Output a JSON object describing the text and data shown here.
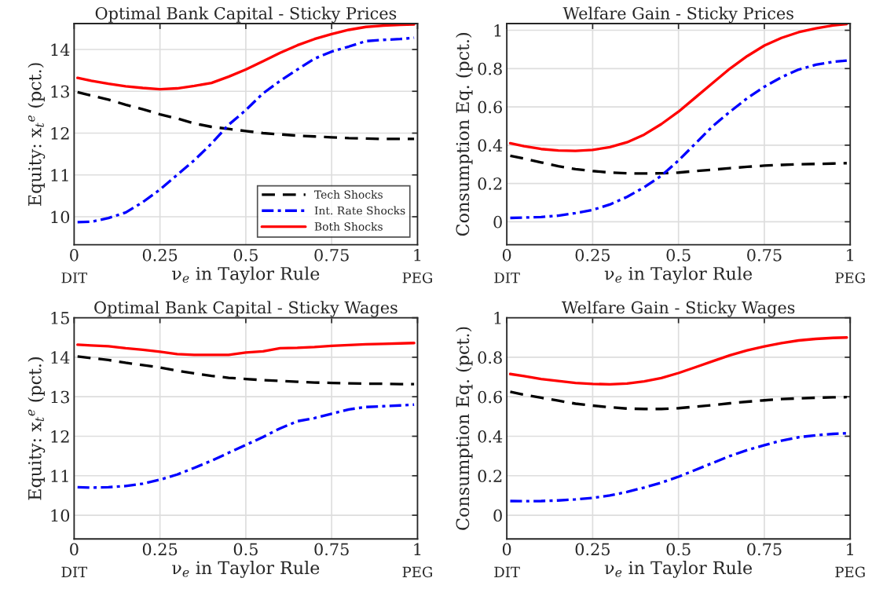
{
  "chart_data": [
    {
      "type": "line",
      "title": "Optimal Bank Capital - Sticky Prices",
      "xlabel": "ν$_{e}$ in Taylor Rule",
      "ylabel": "Equity: x$_{t}$$^{e}$ (pct.)",
      "annotations": [
        "DIT",
        "PEG"
      ],
      "x": [
        0.01,
        0.05,
        0.1,
        0.15,
        0.2,
        0.25,
        0.3,
        0.35,
        0.4,
        0.45,
        0.5,
        0.55,
        0.6,
        0.65,
        0.7,
        0.75,
        0.8,
        0.85,
        0.9,
        0.95,
        0.99
      ],
      "series": [
        {
          "name": "Tech Shocks",
          "color": "#000000",
          "line_style": "dashed",
          "values": [
            12.98,
            12.9,
            12.8,
            12.68,
            12.57,
            12.45,
            12.35,
            12.23,
            12.15,
            12.1,
            12.05,
            12.0,
            11.97,
            11.94,
            11.92,
            11.9,
            11.88,
            11.87,
            11.86,
            11.86,
            11.86
          ]
        },
        {
          "name": "Int. Rate Shocks",
          "color": "#0000ff",
          "line_style": "dashdot",
          "values": [
            9.87,
            9.88,
            9.97,
            10.1,
            10.35,
            10.65,
            11.0,
            11.35,
            11.75,
            12.2,
            12.55,
            12.95,
            13.25,
            13.52,
            13.78,
            13.95,
            14.07,
            14.2,
            14.23,
            14.25,
            14.28
          ]
        },
        {
          "name": "Both Shocks",
          "color": "#ff0000",
          "line_style": "solid",
          "values": [
            13.32,
            13.25,
            13.18,
            13.12,
            13.08,
            13.05,
            13.07,
            13.13,
            13.2,
            13.35,
            13.52,
            13.72,
            13.92,
            14.1,
            14.25,
            14.37,
            14.47,
            14.54,
            14.57,
            14.59,
            14.6
          ]
        }
      ],
      "xlim": [
        0,
        1
      ],
      "xticks": [
        0,
        0.25,
        0.5,
        0.75,
        1
      ],
      "ylim": [
        9.33,
        14.62
      ],
      "yticks": [
        10,
        11,
        12,
        13,
        14
      ],
      "grid": true,
      "legend": "bottom right"
    },
    {
      "type": "line",
      "title": "Welfare Gain - Sticky Prices",
      "xlabel": "ν$_{e}$ in Taylor Rule",
      "ylabel": "Consumption Eq. (pct.)",
      "annotations": [
        "DIT",
        "PEG"
      ],
      "x": [
        0.01,
        0.05,
        0.1,
        0.15,
        0.2,
        0.25,
        0.3,
        0.35,
        0.4,
        0.45,
        0.5,
        0.55,
        0.6,
        0.65,
        0.7,
        0.75,
        0.8,
        0.85,
        0.9,
        0.95,
        0.99
      ],
      "series": [
        {
          "color": "#000000",
          "line_style": "dashed",
          "values": [
            0.345,
            0.33,
            0.31,
            0.29,
            0.275,
            0.265,
            0.257,
            0.253,
            0.252,
            0.253,
            0.257,
            0.265,
            0.272,
            0.28,
            0.287,
            0.293,
            0.297,
            0.3,
            0.302,
            0.304,
            0.306
          ]
        },
        {
          "color": "#0000ff",
          "line_style": "dashdot",
          "values": [
            0.02,
            0.022,
            0.025,
            0.032,
            0.045,
            0.062,
            0.09,
            0.13,
            0.18,
            0.24,
            0.32,
            0.41,
            0.5,
            0.575,
            0.645,
            0.705,
            0.755,
            0.795,
            0.82,
            0.835,
            0.842
          ]
        },
        {
          "color": "#ff0000",
          "line_style": "solid",
          "values": [
            0.41,
            0.395,
            0.38,
            0.372,
            0.37,
            0.375,
            0.39,
            0.415,
            0.455,
            0.51,
            0.575,
            0.65,
            0.725,
            0.8,
            0.865,
            0.92,
            0.96,
            0.99,
            1.01,
            1.025,
            1.033
          ]
        }
      ],
      "xlim": [
        0,
        1
      ],
      "xticks": [
        0,
        0.25,
        0.5,
        0.75,
        1
      ],
      "ylim": [
        -0.12,
        1.035
      ],
      "yticks": [
        0,
        0.2,
        0.4,
        0.6,
        0.8,
        1
      ],
      "grid": true
    },
    {
      "type": "line",
      "title": "Optimal Bank Capital - Sticky Wages",
      "xlabel": "ν$_{e}$ in Taylor Rule",
      "ylabel": "Equity: x$_{t}$$^{e}$ (pct.)",
      "annotations": [
        "DIT",
        "PEG"
      ],
      "x": [
        0.01,
        0.05,
        0.1,
        0.15,
        0.2,
        0.25,
        0.3,
        0.35,
        0.4,
        0.45,
        0.5,
        0.55,
        0.6,
        0.65,
        0.7,
        0.75,
        0.8,
        0.85,
        0.9,
        0.95,
        0.99
      ],
      "series": [
        {
          "color": "#000000",
          "line_style": "dashed",
          "values": [
            14.02,
            13.98,
            13.93,
            13.86,
            13.8,
            13.74,
            13.66,
            13.59,
            13.53,
            13.48,
            13.45,
            13.42,
            13.4,
            13.38,
            13.36,
            13.35,
            13.34,
            13.33,
            13.33,
            13.32,
            13.32
          ]
        },
        {
          "color": "#0000ff",
          "line_style": "dashdot",
          "values": [
            10.71,
            10.7,
            10.71,
            10.74,
            10.8,
            10.9,
            11.03,
            11.2,
            11.38,
            11.58,
            11.78,
            11.98,
            12.2,
            12.38,
            12.46,
            12.57,
            12.68,
            12.74,
            12.76,
            12.78,
            12.8
          ]
        },
        {
          "color": "#ff0000",
          "line_style": "solid",
          "values": [
            14.32,
            14.3,
            14.28,
            14.23,
            14.19,
            14.14,
            14.08,
            14.06,
            14.06,
            14.06,
            14.12,
            14.15,
            14.23,
            14.24,
            14.26,
            14.29,
            14.31,
            14.33,
            14.34,
            14.35,
            14.36
          ]
        }
      ],
      "xlim": [
        0,
        1
      ],
      "xticks": [
        0,
        0.25,
        0.5,
        0.75,
        1
      ],
      "ylim": [
        9.4,
        15
      ],
      "yticks": [
        10,
        11,
        12,
        13,
        14,
        15
      ],
      "grid": true
    },
    {
      "type": "line",
      "title": "Welfare Gain - Sticky Wages",
      "xlabel": "ν$_{e}$ in Taylor Rule",
      "ylabel": "Consumption Eq. (pct.)",
      "annotations": [
        "DIT",
        "PEG"
      ],
      "x": [
        0.01,
        0.05,
        0.1,
        0.15,
        0.2,
        0.25,
        0.3,
        0.35,
        0.4,
        0.45,
        0.5,
        0.55,
        0.6,
        0.65,
        0.7,
        0.75,
        0.8,
        0.85,
        0.9,
        0.95,
        0.99
      ],
      "series": [
        {
          "color": "#000000",
          "line_style": "dashed",
          "values": [
            0.625,
            0.61,
            0.595,
            0.58,
            0.565,
            0.555,
            0.547,
            0.54,
            0.538,
            0.538,
            0.542,
            0.55,
            0.558,
            0.567,
            0.575,
            0.582,
            0.588,
            0.592,
            0.595,
            0.597,
            0.598
          ]
        },
        {
          "color": "#0000ff",
          "line_style": "dashdot",
          "values": [
            0.072,
            0.071,
            0.072,
            0.075,
            0.08,
            0.088,
            0.1,
            0.118,
            0.14,
            0.165,
            0.195,
            0.23,
            0.265,
            0.3,
            0.33,
            0.355,
            0.378,
            0.395,
            0.405,
            0.412,
            0.415
          ]
        },
        {
          "color": "#ff0000",
          "line_style": "solid",
          "values": [
            0.715,
            0.705,
            0.69,
            0.68,
            0.67,
            0.665,
            0.663,
            0.667,
            0.678,
            0.695,
            0.72,
            0.75,
            0.78,
            0.81,
            0.835,
            0.855,
            0.872,
            0.885,
            0.893,
            0.898,
            0.9
          ]
        }
      ],
      "xlim": [
        0,
        1
      ],
      "xticks": [
        0,
        0.25,
        0.5,
        0.75,
        1
      ],
      "ylim": [
        -0.12,
        1
      ],
      "yticks": [
        0,
        0.2,
        0.4,
        0.6,
        0.8,
        1
      ],
      "grid": true
    }
  ]
}
